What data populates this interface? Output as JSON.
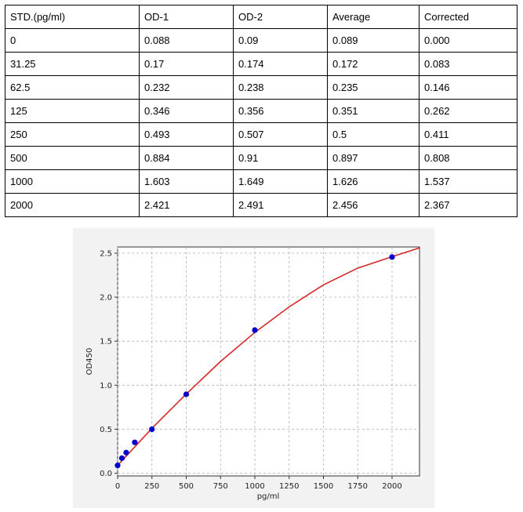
{
  "table": {
    "headers": [
      "STD.(pg/ml)",
      "OD-1",
      "OD-2",
      "Average",
      "Corrected"
    ],
    "rows": [
      [
        "0",
        "0.088",
        "0.09",
        "0.089",
        "0.000"
      ],
      [
        "31.25",
        "0.17",
        "0.174",
        "0.172",
        "0.083"
      ],
      [
        "62.5",
        "0.232",
        "0.238",
        "0.235",
        "0.146"
      ],
      [
        "125",
        "0.346",
        "0.356",
        "0.351",
        "0.262"
      ],
      [
        "250",
        "0.493",
        "0.507",
        "0.5",
        "0.411"
      ],
      [
        "500",
        "0.884",
        "0.91",
        "0.897",
        "0.808"
      ],
      [
        "1000",
        "1.603",
        "1.649",
        "1.626",
        "1.537"
      ],
      [
        "2000",
        "2.421",
        "2.491",
        "2.456",
        "2.367"
      ]
    ]
  },
  "chart_data": {
    "type": "scatter",
    "xlabel": "pg/ml",
    "ylabel": "OD450",
    "xlim": [
      0,
      2200
    ],
    "ylim": [
      -0.03,
      2.57
    ],
    "xticks": [
      0,
      250,
      500,
      750,
      1000,
      1250,
      1500,
      1750,
      2000
    ],
    "yticks": [
      0.0,
      0.5,
      1.0,
      1.5,
      2.0,
      2.5
    ],
    "xtick_labels": [
      "0",
      "250",
      "500",
      "750",
      "1000",
      "1250",
      "1500",
      "1750",
      "2000"
    ],
    "ytick_labels": [
      "0.0",
      "0.5",
      "1.0",
      "1.5",
      "2.0",
      "2.5"
    ],
    "grid": true,
    "series": [
      {
        "kind": "points",
        "color": "#0000cc",
        "x": [
          0,
          31.25,
          62.5,
          125,
          250,
          500,
          1000,
          2000
        ],
        "y": [
          0.089,
          0.172,
          0.235,
          0.351,
          0.5,
          0.897,
          1.626,
          2.456
        ]
      },
      {
        "kind": "fit-curve",
        "color": "#d62728",
        "x": [
          0,
          250,
          500,
          750,
          1000,
          1250,
          1500,
          1750,
          2000,
          2200
        ],
        "y": [
          0.09,
          0.51,
          0.9,
          1.27,
          1.6,
          1.89,
          2.14,
          2.33,
          2.46,
          2.56
        ]
      }
    ]
  }
}
